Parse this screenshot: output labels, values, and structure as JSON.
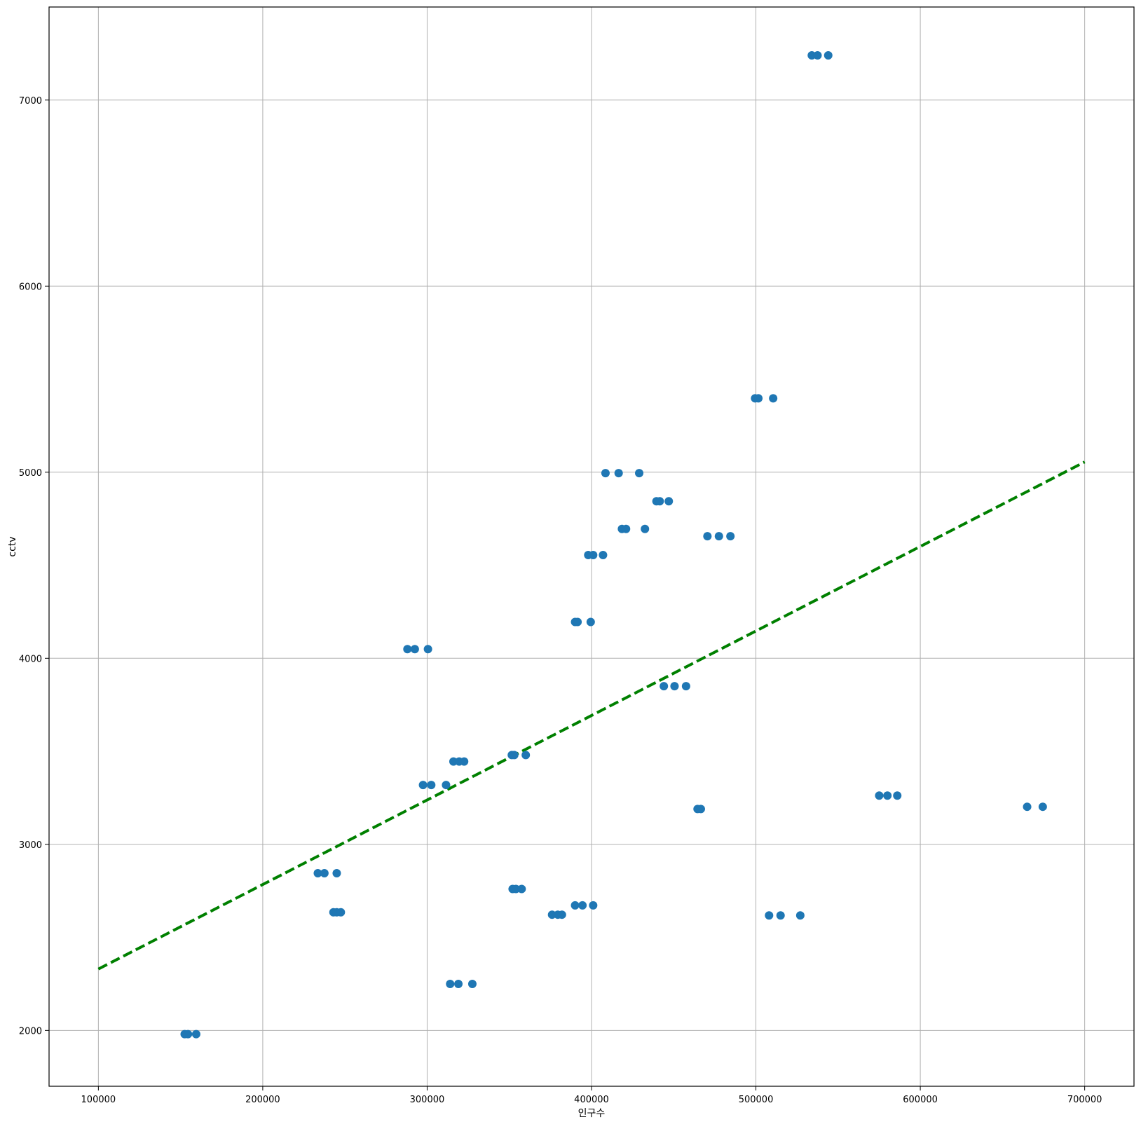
{
  "chart_data": {
    "type": "scatter",
    "title": "",
    "xlabel": "인구수",
    "ylabel": "cctv",
    "xlim": [
      70000,
      730000
    ],
    "ylim": [
      1700,
      7500
    ],
    "xticks": [
      100000,
      200000,
      300000,
      400000,
      500000,
      600000,
      700000
    ],
    "yticks": [
      2000,
      3000,
      4000,
      5000,
      6000,
      7000
    ],
    "grid": true,
    "legend": "none",
    "series": [
      {
        "kind": "scatter",
        "color": "#1f77b4",
        "x": [
          534000,
          537500,
          544000,
          499500,
          501500,
          510500,
          408500,
          416500,
          429000,
          439500,
          441500,
          447000,
          418500,
          421000,
          432500,
          470500,
          477500,
          484500,
          398000,
          401000,
          407000,
          390000,
          391500,
          399500,
          288000,
          292500,
          300500,
          444000,
          450500,
          457500,
          351500,
          353000,
          360000,
          316000,
          319500,
          322500,
          297500,
          302500,
          311500,
          464500,
          466500,
          575000,
          580000,
          586000,
          665000,
          674500,
          233500,
          237500,
          245000,
          352000,
          354000,
          357500,
          243000,
          245000,
          247500,
          376000,
          379500,
          382000,
          390000,
          394500,
          401000,
          508000,
          515000,
          527000,
          314000,
          319000,
          327500,
          152500,
          154500,
          159500
        ],
        "y": [
          7240,
          7240,
          7240,
          5397,
          5397,
          5397,
          4995,
          4995,
          4995,
          4844,
          4844,
          4844,
          4695,
          4695,
          4695,
          4656,
          4656,
          4656,
          4555,
          4555,
          4555,
          4195,
          4195,
          4195,
          4049,
          4049,
          4049,
          3850,
          3850,
          3850,
          3480,
          3480,
          3480,
          3445,
          3445,
          3445,
          3319,
          3319,
          3319,
          3190,
          3190,
          3262,
          3262,
          3262,
          3202,
          3202,
          2845,
          2845,
          2845,
          2760,
          2760,
          2760,
          2635,
          2635,
          2635,
          2622,
          2622,
          2622,
          2672,
          2672,
          2672,
          2618,
          2618,
          2618,
          2250,
          2250,
          2250,
          1980,
          1980,
          1980
        ]
      },
      {
        "kind": "line",
        "color": "#008000",
        "style": "dashed",
        "x": [
          100000,
          700000
        ],
        "y": [
          2330,
          5055
        ]
      }
    ]
  }
}
